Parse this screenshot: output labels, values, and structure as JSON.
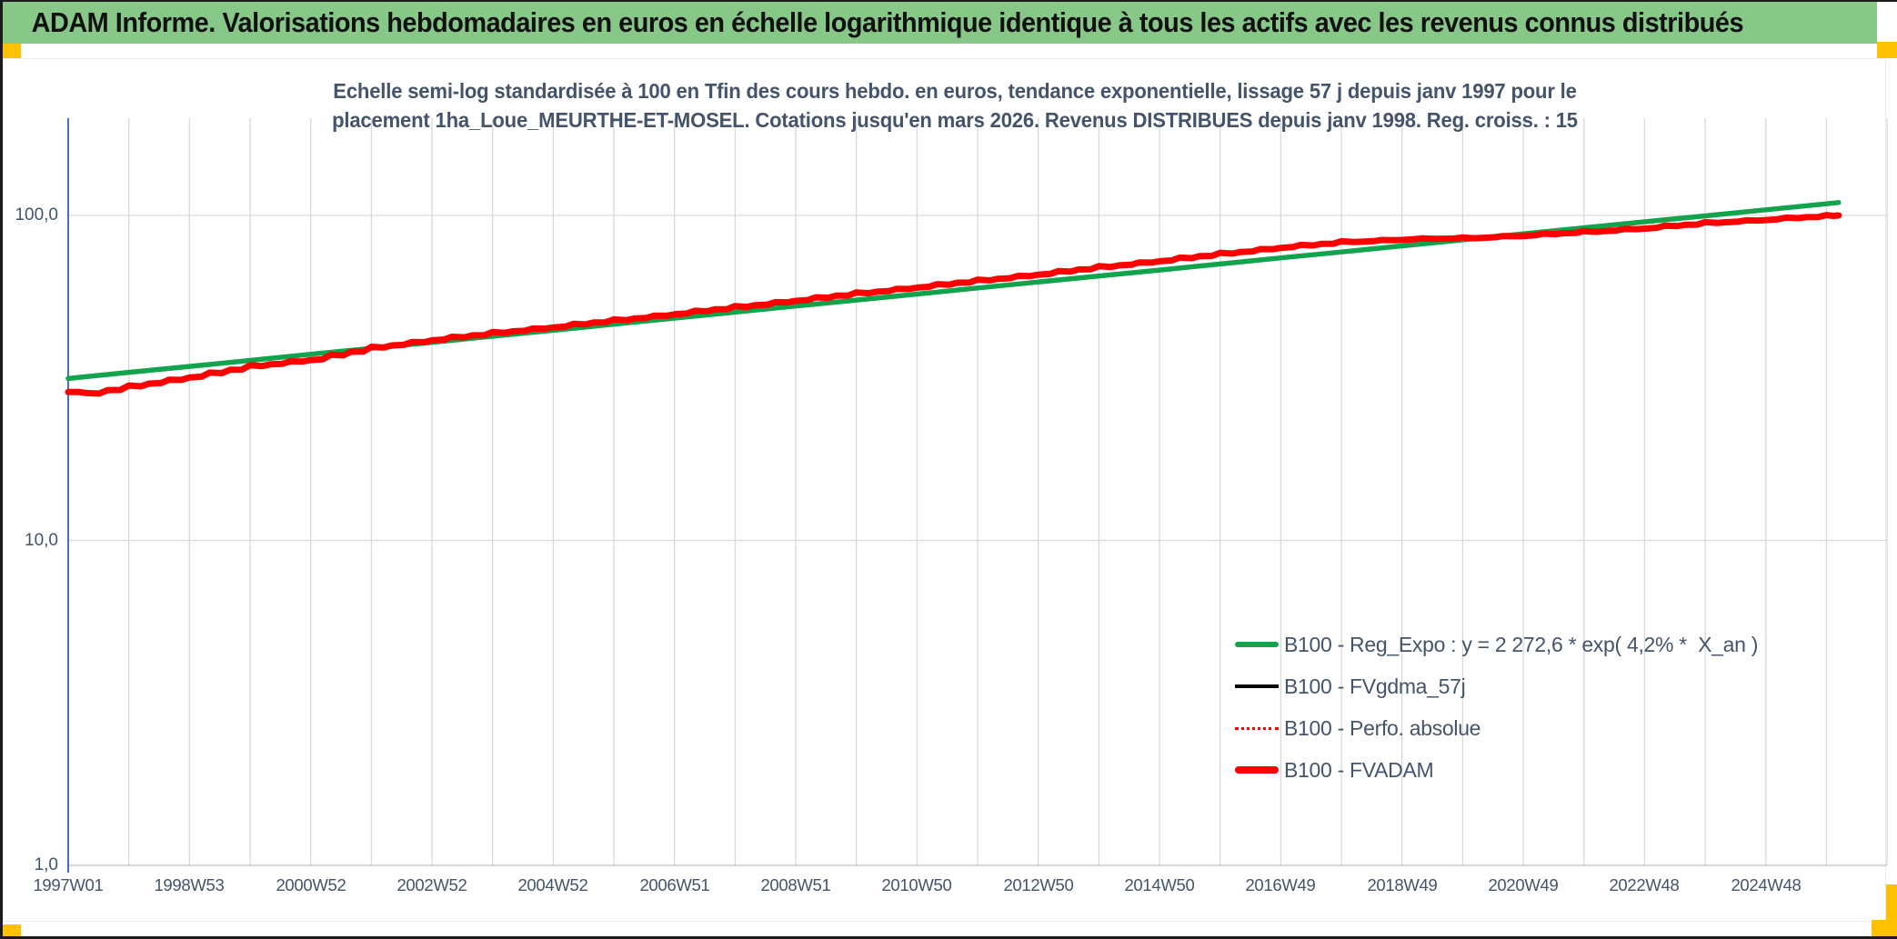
{
  "banner": {
    "title": "ADAM Informe. Valorisations hebdomadaires en euros en échelle logarithmique identique à tous les actifs avec les revenus connus distribués"
  },
  "colors": {
    "banner_bg": "#87C787",
    "gold_accent": "#FFC000",
    "title_text": "#44546A",
    "axis_text": "#44546A",
    "y_axis_line": "#4472C4",
    "gridline": "#D9D9D9",
    "baseline": "#BFBFBF",
    "green_line": "#12A34D",
    "red_line": "#FF0000",
    "black_line": "#000000"
  },
  "chart": {
    "title_line1": "Echelle semi-log standardisée à 100 en Tfin des cours hebdo. en euros, tendance exponentielle, lissage 57 j depuis janv 1997 pour le",
    "title_line2": "placement 1ha_Loue_MEURTHE-ET-MOSEL. Cotations jusqu'en mars 2026. Revenus DISTRIBUES depuis janv 1998. Reg. croiss. : 15",
    "y_ticks": [
      {
        "label": "100,0",
        "value": 100
      },
      {
        "label": "10,0",
        "value": 10
      },
      {
        "label": "1,0",
        "value": 1
      }
    ],
    "x_ticks": [
      {
        "label": "1997W01",
        "year": 1997
      },
      {
        "label": "1998W53",
        "year": 1999
      },
      {
        "label": "2000W52",
        "year": 2001
      },
      {
        "label": "2002W52",
        "year": 2003
      },
      {
        "label": "2004W52",
        "year": 2005
      },
      {
        "label": "2006W51",
        "year": 2007
      },
      {
        "label": "2008W51",
        "year": 2009
      },
      {
        "label": "2010W50",
        "year": 2011
      },
      {
        "label": "2012W50",
        "year": 2013
      },
      {
        "label": "2014W50",
        "year": 2015
      },
      {
        "label": "2016W49",
        "year": 2017
      },
      {
        "label": "2018W49",
        "year": 2019
      },
      {
        "label": "2020W49",
        "year": 2021
      },
      {
        "label": "2022W48",
        "year": 2023
      },
      {
        "label": "2024W48",
        "year": 2025
      }
    ],
    "legend": [
      {
        "label": "B100 - Reg_Expo : y = 2 272,6 * exp( 4,2% *  X_an )",
        "color": "#12A34D",
        "style": "solid-thick"
      },
      {
        "label": "B100 - FVgdma_57j",
        "color": "#000000",
        "style": "solid-thin"
      },
      {
        "label": "B100 - Perfo. absolue",
        "color": "#FF0000",
        "style": "dotted"
      },
      {
        "label": "B100 - FVADAM",
        "color": "#FF0000",
        "style": "solid-thick"
      }
    ]
  },
  "chart_data": {
    "type": "line",
    "title": "Echelle semi-log standardisée à 100 en Tfin des cours hebdo. en euros, tendance exponentielle, lissage 57 j depuis janv 1997 pour le placement 1ha_Loue_MEURTHE-ET-MOSEL. Cotations jusqu'en mars 2026. Revenus DISTRIBUES depuis janv 1998. Reg. croiss. : 15",
    "x_axis": {
      "unit": "year (ISO week labels)",
      "range": [
        1997,
        2027
      ],
      "gridline_every_years": 1,
      "label_every_years": 2
    },
    "y_axis": {
      "scale": "log10",
      "range": [
        1,
        200
      ],
      "gridlines": [
        1,
        10,
        100
      ],
      "tick_labels": [
        "1,0",
        "10,0",
        "100,0"
      ]
    },
    "legend_position": "inside lower right",
    "grid": true,
    "series": [
      {
        "name": "B100 - Reg_Expo : y = 2 272,6 * exp( 4,2% *  X_an )",
        "color": "#12A34D",
        "shape": "straight exponential trend on log scale",
        "x": [
          1997,
          1998,
          1999,
          2000,
          2001,
          2002,
          2003,
          2004,
          2005,
          2006,
          2007,
          2008,
          2009,
          2010,
          2011,
          2012,
          2013,
          2014,
          2015,
          2016,
          2017,
          2018,
          2019,
          2020,
          2021,
          2022,
          2023,
          2024,
          2025,
          2026,
          2026.2
        ],
        "values": [
          31.5,
          32.9,
          34.3,
          35.8,
          37.4,
          39.0,
          40.7,
          42.5,
          44.3,
          46.3,
          48.3,
          50.4,
          52.6,
          54.9,
          57.3,
          59.8,
          62.4,
          65.1,
          67.9,
          70.9,
          74.0,
          77.2,
          80.6,
          84.1,
          87.8,
          91.6,
          95.6,
          99.7,
          104.1,
          108.6,
          109.6
        ]
      },
      {
        "name": "B100 - FVADAM",
        "color": "#FF0000",
        "shape": "stepped weekly valuation curve, standardized to 100 at final date",
        "x": [
          1997,
          1997.3,
          1998,
          1999,
          2000,
          2001,
          2002,
          2003,
          2004,
          2005,
          2006,
          2007,
          2008,
          2009,
          2010,
          2011,
          2012,
          2013,
          2014,
          2015,
          2016,
          2017,
          2018,
          2019,
          2020,
          2021,
          2022,
          2023,
          2024,
          2025,
          2026,
          2026.2
        ],
        "values": [
          28.6,
          28.3,
          29.8,
          31.9,
          34.4,
          36.1,
          39.2,
          41.5,
          43.5,
          45.5,
          47.6,
          49.9,
          52.3,
          54.9,
          57.6,
          60.3,
          63.1,
          66.1,
          69.4,
          72.7,
          76.3,
          79.9,
          82.8,
          84.5,
          85.1,
          86.9,
          89.0,
          91.6,
          94.8,
          97.3,
          99.7,
          100.0
        ]
      },
      {
        "name": "B100 - FVgdma_57j",
        "color": "#000000",
        "visibility": "coincides with B100 - FVADAM (hidden underneath)",
        "x": [
          1997,
          2026.2
        ],
        "values": [
          28.6,
          100.0
        ]
      },
      {
        "name": "B100 - Perfo. absolue",
        "color": "#FF0000",
        "line_style": "dotted",
        "visibility": "coincides with B100 - FVADAM (hidden underneath)",
        "x": [
          1997,
          2026.2
        ],
        "values": [
          28.6,
          100.0
        ]
      }
    ]
  }
}
